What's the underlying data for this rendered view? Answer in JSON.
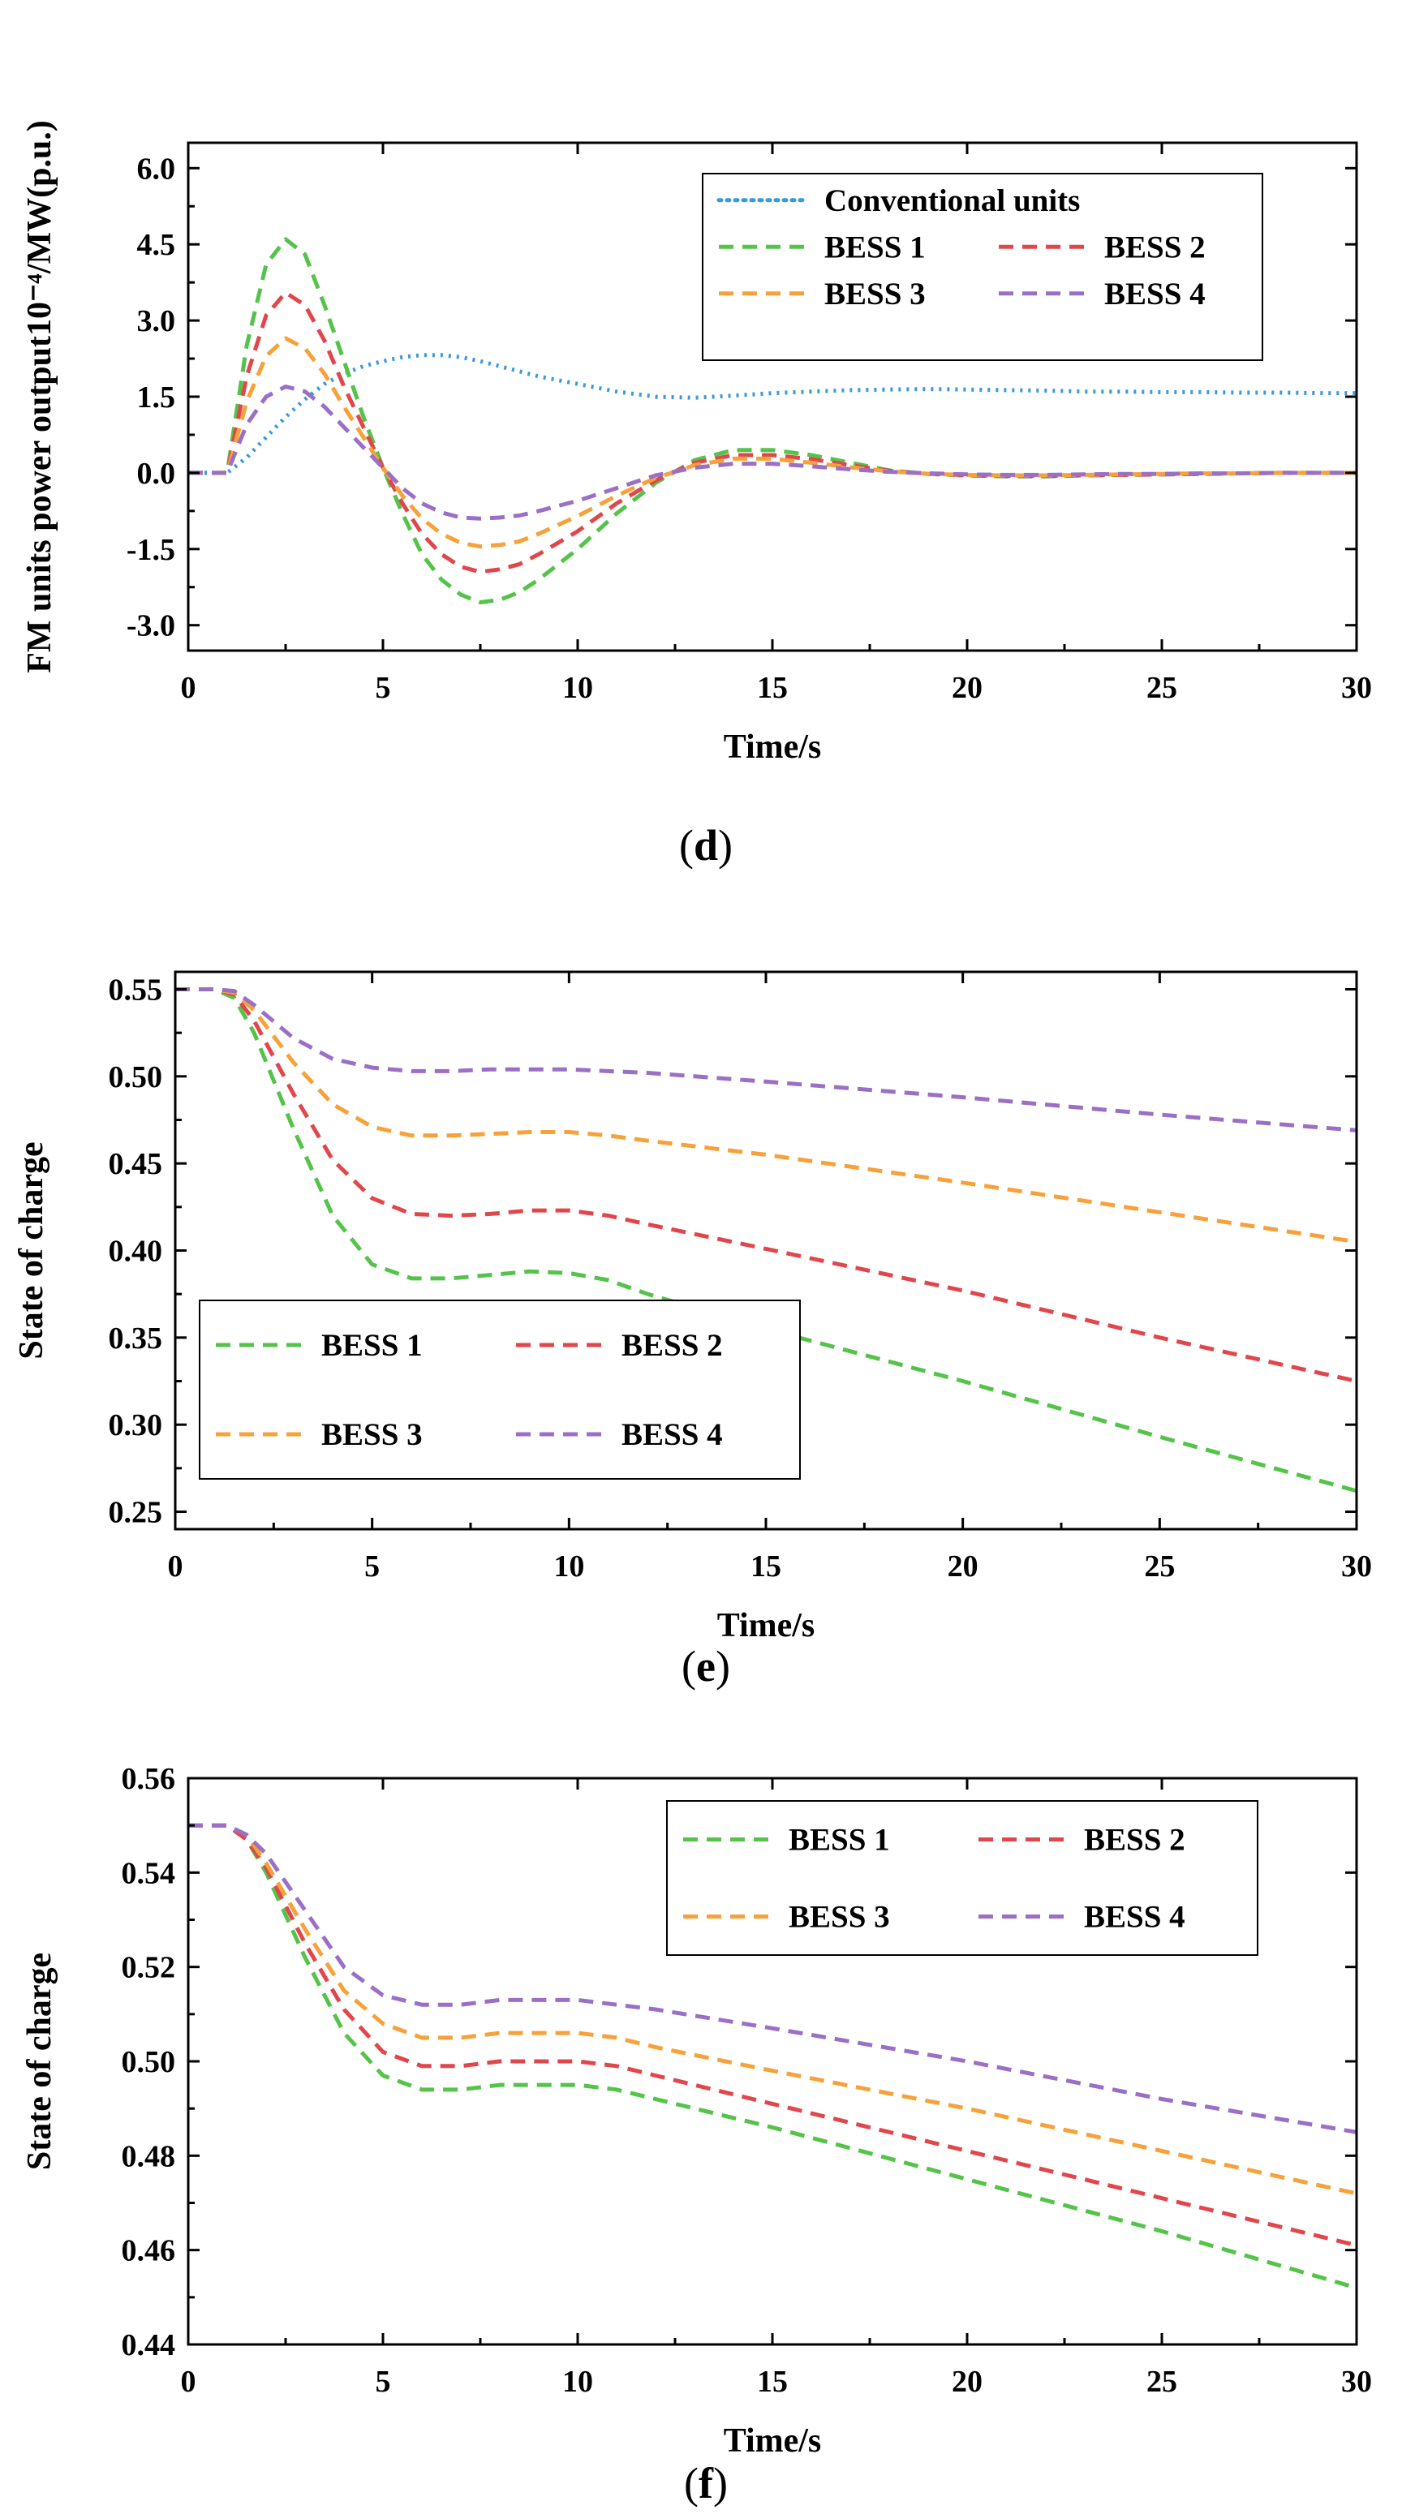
{
  "colors": {
    "conventional": "#3a9ad9",
    "bess1": "#55c34a",
    "bess2": "#e0474c",
    "bess3": "#f6a13a",
    "bess4": "#9b6fc6"
  },
  "chart_data": [
    {
      "id": "d",
      "type": "line",
      "caption_letter": "d",
      "xlabel": "Time/s",
      "ylabel": "FM units power output10⁻⁴/MW(p.u.)",
      "xlim": [
        0,
        30
      ],
      "ylim": [
        -3.5,
        6.5
      ],
      "xticks": [
        "0",
        "5",
        "10",
        "15",
        "20",
        "25",
        "30"
      ],
      "yticks": [
        "-3.0",
        "-1.5",
        "0.0",
        "1.5",
        "3.0",
        "4.5",
        "6.0"
      ],
      "legend_position": "top-right",
      "series": [
        {
          "name": "Conventional units",
          "style": "dotted",
          "color_key": "conventional",
          "x": [
            0,
            1,
            1.5,
            2,
            2.5,
            3,
            3.5,
            4,
            4.5,
            5,
            5.5,
            6,
            6.5,
            7,
            7.5,
            8,
            9,
            10,
            11,
            12,
            13,
            14,
            15,
            16,
            17,
            18,
            19,
            20,
            21,
            22,
            23,
            24,
            25,
            26,
            27,
            28,
            29,
            30
          ],
          "y": [
            0,
            0,
            0.3,
            0.7,
            1.1,
            1.45,
            1.75,
            1.95,
            2.1,
            2.2,
            2.28,
            2.32,
            2.32,
            2.28,
            2.2,
            2.1,
            1.9,
            1.75,
            1.6,
            1.5,
            1.48,
            1.52,
            1.57,
            1.6,
            1.63,
            1.64,
            1.65,
            1.64,
            1.63,
            1.62,
            1.6,
            1.6,
            1.59,
            1.59,
            1.58,
            1.58,
            1.57,
            1.57
          ]
        },
        {
          "name": "BESS 1",
          "style": "dashed",
          "color_key": "bess1",
          "x": [
            0,
            1,
            1.5,
            2,
            2.5,
            3,
            3.5,
            4,
            4.5,
            5,
            5.5,
            6,
            6.5,
            7,
            7.5,
            8,
            8.5,
            9,
            10,
            11,
            12,
            13,
            14,
            15,
            16,
            17,
            18,
            19,
            20,
            21,
            22,
            23,
            24,
            25,
            26,
            27,
            28,
            29,
            30
          ],
          "y": [
            0,
            0,
            2.5,
            4.1,
            4.6,
            4.3,
            3.3,
            2.2,
            1.1,
            0.1,
            -0.8,
            -1.6,
            -2.1,
            -2.4,
            -2.55,
            -2.5,
            -2.35,
            -2.1,
            -1.5,
            -0.8,
            -0.2,
            0.25,
            0.45,
            0.45,
            0.35,
            0.2,
            0.05,
            -0.02,
            -0.05,
            -0.07,
            -0.07,
            -0.05,
            -0.04,
            -0.03,
            -0.02,
            -0.01,
            0,
            0,
            0
          ]
        },
        {
          "name": "BESS 2",
          "style": "dashed",
          "color_key": "bess2",
          "x": [
            0,
            1,
            1.5,
            2,
            2.5,
            3,
            3.5,
            4,
            4.5,
            5,
            5.5,
            6,
            6.5,
            7,
            7.5,
            8,
            8.5,
            9,
            10,
            11,
            12,
            13,
            14,
            15,
            16,
            17,
            18,
            19,
            20,
            21,
            22,
            23,
            24,
            25,
            26,
            27,
            28,
            29,
            30
          ],
          "y": [
            0,
            0,
            1.9,
            3.1,
            3.55,
            3.3,
            2.6,
            1.7,
            0.9,
            0.1,
            -0.6,
            -1.2,
            -1.6,
            -1.85,
            -1.95,
            -1.9,
            -1.8,
            -1.6,
            -1.15,
            -0.6,
            -0.15,
            0.2,
            0.35,
            0.35,
            0.27,
            0.15,
            0.04,
            -0.02,
            -0.05,
            -0.06,
            -0.06,
            -0.05,
            -0.04,
            -0.03,
            -0.02,
            -0.01,
            0,
            0,
            0
          ]
        },
        {
          "name": "BESS 3",
          "style": "dashed",
          "color_key": "bess3",
          "x": [
            0,
            1,
            1.5,
            2,
            2.5,
            3,
            3.5,
            4,
            4.5,
            5,
            5.5,
            6,
            6.5,
            7,
            7.5,
            8,
            8.5,
            9,
            10,
            11,
            12,
            13,
            14,
            15,
            16,
            17,
            18,
            19,
            20,
            21,
            22,
            23,
            24,
            25,
            26,
            27,
            28,
            29,
            30
          ],
          "y": [
            0,
            0,
            1.4,
            2.3,
            2.65,
            2.45,
            1.95,
            1.3,
            0.7,
            0.1,
            -0.45,
            -0.9,
            -1.2,
            -1.38,
            -1.45,
            -1.42,
            -1.35,
            -1.2,
            -0.85,
            -0.45,
            -0.1,
            0.15,
            0.28,
            0.28,
            0.2,
            0.11,
            0.03,
            -0.02,
            -0.04,
            -0.05,
            -0.05,
            -0.04,
            -0.03,
            -0.02,
            -0.01,
            -0.01,
            0,
            0,
            0
          ]
        },
        {
          "name": "BESS 4",
          "style": "dashed",
          "color_key": "bess4",
          "x": [
            0,
            1,
            1.5,
            2,
            2.5,
            3,
            3.5,
            4,
            4.5,
            5,
            5.5,
            6,
            6.5,
            7,
            7.5,
            8,
            8.5,
            9,
            10,
            11,
            12,
            13,
            14,
            15,
            16,
            17,
            18,
            19,
            20,
            21,
            22,
            23,
            24,
            25,
            26,
            27,
            28,
            29,
            30
          ],
          "y": [
            0,
            0,
            0.95,
            1.5,
            1.7,
            1.6,
            1.3,
            0.9,
            0.5,
            0.1,
            -0.3,
            -0.6,
            -0.78,
            -0.88,
            -0.9,
            -0.88,
            -0.84,
            -0.75,
            -0.55,
            -0.3,
            -0.05,
            0.1,
            0.18,
            0.18,
            0.13,
            0.07,
            0.02,
            -0.01,
            -0.03,
            -0.04,
            -0.04,
            -0.03,
            -0.02,
            -0.02,
            -0.01,
            -0.01,
            0,
            0,
            0
          ]
        }
      ]
    },
    {
      "id": "e",
      "type": "line",
      "caption_letter": "e",
      "xlabel": "Time/s",
      "ylabel": "State of charge",
      "xlim": [
        0,
        30
      ],
      "ylim": [
        0.24,
        0.56
      ],
      "xticks": [
        "0",
        "5",
        "10",
        "15",
        "20",
        "25",
        "30"
      ],
      "yticks": [
        "0.25",
        "0.30",
        "0.35",
        "0.40",
        "0.45",
        "0.50",
        "0.55"
      ],
      "legend_position": "bottom-left",
      "series": [
        {
          "name": "BESS 1",
          "style": "dashed",
          "color_key": "bess1",
          "x": [
            0,
            1,
            1.5,
            2,
            3,
            4,
            5,
            6,
            7,
            8,
            9,
            10,
            11,
            12,
            15,
            20,
            25,
            30
          ],
          "y": [
            0.55,
            0.55,
            0.545,
            0.525,
            0.47,
            0.42,
            0.392,
            0.384,
            0.384,
            0.386,
            0.388,
            0.387,
            0.383,
            0.375,
            0.355,
            0.325,
            0.293,
            0.262
          ]
        },
        {
          "name": "BESS 2",
          "style": "dashed",
          "color_key": "bess2",
          "x": [
            0,
            1,
            1.5,
            2,
            3,
            4,
            5,
            6,
            7,
            8,
            9,
            10,
            11,
            12,
            15,
            20,
            25,
            30
          ],
          "y": [
            0.55,
            0.55,
            0.547,
            0.532,
            0.49,
            0.452,
            0.43,
            0.421,
            0.42,
            0.421,
            0.423,
            0.423,
            0.42,
            0.415,
            0.401,
            0.377,
            0.35,
            0.325
          ]
        },
        {
          "name": "BESS 3",
          "style": "dashed",
          "color_key": "bess3",
          "x": [
            0,
            1,
            1.5,
            2,
            3,
            4,
            5,
            6,
            7,
            8,
            9,
            10,
            11,
            12,
            15,
            20,
            25,
            30
          ],
          "y": [
            0.55,
            0.55,
            0.548,
            0.538,
            0.508,
            0.484,
            0.471,
            0.466,
            0.466,
            0.467,
            0.468,
            0.468,
            0.466,
            0.463,
            0.455,
            0.439,
            0.422,
            0.405
          ]
        },
        {
          "name": "BESS 4",
          "style": "dashed",
          "color_key": "bess4",
          "x": [
            0,
            1,
            1.5,
            2,
            3,
            4,
            5,
            6,
            7,
            8,
            9,
            10,
            11,
            12,
            15,
            20,
            25,
            30
          ],
          "y": [
            0.55,
            0.55,
            0.549,
            0.541,
            0.522,
            0.51,
            0.505,
            0.503,
            0.503,
            0.504,
            0.504,
            0.504,
            0.503,
            0.502,
            0.497,
            0.488,
            0.478,
            0.469
          ]
        }
      ]
    },
    {
      "id": "f",
      "type": "line",
      "caption_letter": "f",
      "xlabel": "Time/s",
      "ylabel": "State of charge",
      "xlim": [
        0,
        30
      ],
      "ylim": [
        0.44,
        0.56
      ],
      "xticks": [
        "0",
        "5",
        "10",
        "15",
        "20",
        "25",
        "30"
      ],
      "yticks": [
        "0.44",
        "0.46",
        "0.48",
        "0.50",
        "0.52",
        "0.54",
        "0.56"
      ],
      "legend_position": "top-right",
      "series": [
        {
          "name": "BESS 1",
          "style": "dashed",
          "color_key": "bess1",
          "x": [
            0,
            1,
            1.5,
            2,
            3,
            4,
            5,
            6,
            7,
            8,
            9,
            10,
            11,
            12,
            15,
            20,
            25,
            30
          ],
          "y": [
            0.55,
            0.55,
            0.547,
            0.54,
            0.522,
            0.506,
            0.497,
            0.494,
            0.494,
            0.495,
            0.495,
            0.495,
            0.494,
            0.492,
            0.486,
            0.475,
            0.464,
            0.452
          ]
        },
        {
          "name": "BESS 2",
          "style": "dashed",
          "color_key": "bess2",
          "x": [
            0,
            1,
            1.5,
            2,
            3,
            4,
            5,
            6,
            7,
            8,
            9,
            10,
            11,
            12,
            15,
            20,
            25,
            30
          ],
          "y": [
            0.55,
            0.55,
            0.547,
            0.541,
            0.525,
            0.511,
            0.502,
            0.499,
            0.499,
            0.5,
            0.5,
            0.5,
            0.499,
            0.497,
            0.491,
            0.481,
            0.471,
            0.461
          ]
        },
        {
          "name": "BESS 3",
          "style": "dashed",
          "color_key": "bess3",
          "x": [
            0,
            1,
            1.5,
            2,
            3,
            4,
            5,
            6,
            7,
            8,
            9,
            10,
            11,
            12,
            15,
            20,
            25,
            30
          ],
          "y": [
            0.55,
            0.55,
            0.548,
            0.542,
            0.528,
            0.515,
            0.508,
            0.505,
            0.505,
            0.506,
            0.506,
            0.506,
            0.505,
            0.503,
            0.498,
            0.49,
            0.481,
            0.472
          ]
        },
        {
          "name": "BESS 4",
          "style": "dashed",
          "color_key": "bess4",
          "x": [
            0,
            1,
            1.5,
            2,
            3,
            4,
            5,
            6,
            7,
            8,
            9,
            10,
            11,
            12,
            15,
            20,
            25,
            30
          ],
          "y": [
            0.55,
            0.55,
            0.548,
            0.544,
            0.532,
            0.52,
            0.514,
            0.512,
            0.512,
            0.513,
            0.513,
            0.513,
            0.512,
            0.511,
            0.507,
            0.5,
            0.492,
            0.485
          ]
        }
      ]
    }
  ]
}
